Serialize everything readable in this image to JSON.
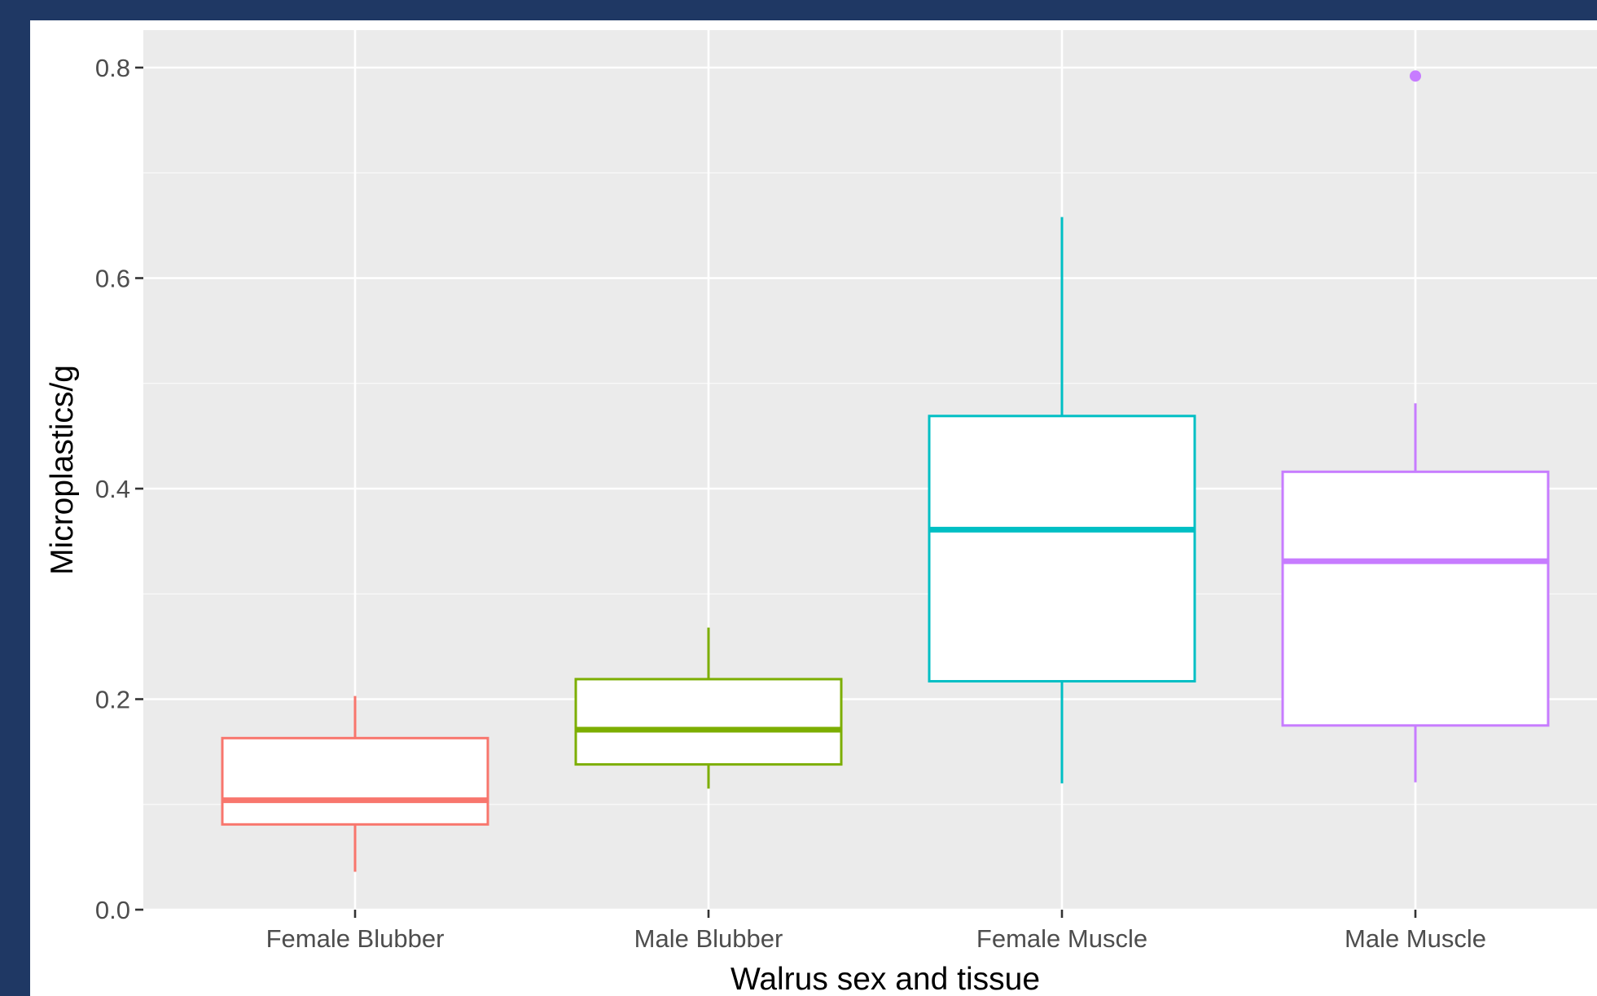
{
  "colors": {
    "page_border": "#1f3864",
    "panel_background": "#ebebeb",
    "grid": "#ffffff",
    "tick_text": "#4d4d4d",
    "box_fill": "#ffffff"
  },
  "chart_data": {
    "type": "box",
    "title": "",
    "xlabel": "Walrus sex and tissue",
    "ylabel": "Microplastics/g",
    "ylim": [
      0,
      0.83
    ],
    "yticks": [
      0.0,
      0.2,
      0.4,
      0.6,
      0.8
    ],
    "ytick_labels": [
      "0.0",
      "0.2",
      "0.4",
      "0.6",
      "0.8"
    ],
    "grid": true,
    "legend": "none",
    "categories": [
      "Female Blubber",
      "Male Blubber",
      "Female Muscle",
      "Male Muscle"
    ],
    "boxes": [
      {
        "category": "Female Blubber",
        "min": 0.036,
        "q1": 0.081,
        "median": 0.104,
        "q3": 0.163,
        "max": 0.203,
        "outliers": [],
        "color": "#f8766d"
      },
      {
        "category": "Male Blubber",
        "min": 0.115,
        "q1": 0.138,
        "median": 0.171,
        "q3": 0.219,
        "max": 0.268,
        "outliers": [],
        "color": "#7cae00"
      },
      {
        "category": "Female Muscle",
        "min": 0.12,
        "q1": 0.217,
        "median": 0.361,
        "q3": 0.469,
        "max": 0.658,
        "outliers": [],
        "color": "#00bfc4"
      },
      {
        "category": "Male Muscle",
        "min": 0.121,
        "q1": 0.175,
        "median": 0.331,
        "q3": 0.416,
        "max": 0.481,
        "outliers": [
          0.792
        ],
        "color": "#c77cff"
      }
    ]
  }
}
